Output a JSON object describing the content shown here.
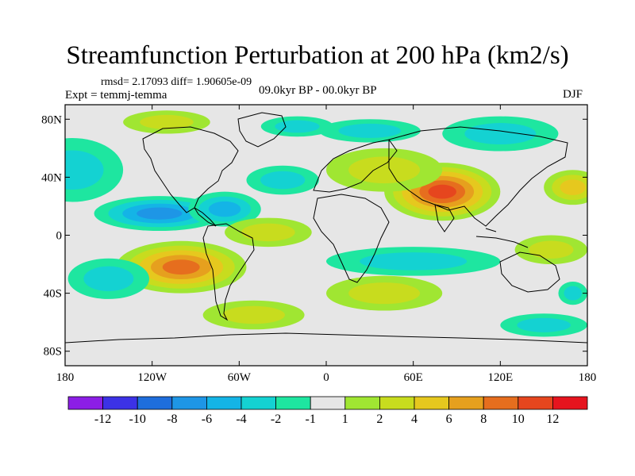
{
  "header": {
    "title": "Streamfunction Perturbation at 200 hPa (km2/s)",
    "stats": "rmsd= 2.17093 diff= 1.90605e-09",
    "experiment": "Expt = temmj-temma",
    "period": "09.0kyr BP - 00.0kyr BP",
    "season": "DJF"
  },
  "map": {
    "projection": "cylindrical-equidistant",
    "lat_labels": [
      "80N",
      "40N",
      "0",
      "40S",
      "80S"
    ],
    "lon_labels": [
      "180",
      "120W",
      "60W",
      "0",
      "60E",
      "120E",
      "180"
    ],
    "lat_values": [
      80,
      40,
      0,
      -40,
      -80
    ],
    "lon_values": [
      -180,
      -120,
      -60,
      0,
      60,
      120,
      180
    ],
    "lat_range": [
      -90,
      90
    ],
    "lon_range": [
      -180,
      180
    ],
    "background_color": "#e6e6e6"
  },
  "colorbar": {
    "labels": [
      "-12",
      "-10",
      "-8",
      "-6",
      "-4",
      "-2",
      "-1",
      "1",
      "2",
      "4",
      "6",
      "8",
      "10",
      "12"
    ],
    "colors": [
      "#8c1ee6",
      "#3c32e6",
      "#1e6edc",
      "#1e96e6",
      "#14b4e6",
      "#14d2d2",
      "#1ee6a0",
      "#e6e6e6",
      "#a0e632",
      "#c8dc1e",
      "#e6c81e",
      "#e6a01e",
      "#e66e1e",
      "#e6461e",
      "#e6141e"
    ]
  },
  "chart_data": {
    "type": "heatmap",
    "title": "Streamfunction Perturbation at 200 hPa (km2/s)",
    "field_approximation": [
      {
        "lon": -110,
        "lat": 78,
        "value": 3,
        "rlon": 30,
        "rlat": 8
      },
      {
        "lon": -175,
        "lat": 45,
        "value": -3,
        "rlon": 35,
        "rlat": 22
      },
      {
        "lon": -115,
        "lat": 15,
        "value": -6,
        "rlon": 45,
        "rlat": 12
      },
      {
        "lon": -70,
        "lat": 18,
        "value": -4,
        "rlon": 25,
        "rlat": 12
      },
      {
        "lon": -30,
        "lat": 38,
        "value": -3,
        "rlon": 25,
        "rlat": 10
      },
      {
        "lon": -20,
        "lat": 75,
        "value": -2,
        "rlon": 25,
        "rlat": 7
      },
      {
        "lon": 30,
        "lat": 72,
        "value": -2,
        "rlon": 35,
        "rlat": 8
      },
      {
        "lon": 120,
        "lat": 70,
        "value": -2,
        "rlon": 40,
        "rlat": 12
      },
      {
        "lon": 80,
        "lat": 30,
        "value": 10,
        "rlon": 40,
        "rlat": 20
      },
      {
        "lon": 40,
        "lat": 45,
        "value": 3,
        "rlon": 40,
        "rlat": 15
      },
      {
        "lon": 170,
        "lat": 33,
        "value": 4,
        "rlon": 20,
        "rlat": 12
      },
      {
        "lon": -100,
        "lat": -22,
        "value": 9,
        "rlon": 45,
        "rlat": 18
      },
      {
        "lon": -40,
        "lat": 2,
        "value": 2,
        "rlon": 30,
        "rlat": 10
      },
      {
        "lon": -150,
        "lat": -30,
        "value": -3,
        "rlon": 28,
        "rlat": 14
      },
      {
        "lon": 60,
        "lat": -18,
        "value": -3,
        "rlon": 60,
        "rlat": 10
      },
      {
        "lon": 40,
        "lat": -40,
        "value": 2,
        "rlon": 40,
        "rlat": 12
      },
      {
        "lon": -50,
        "lat": -55,
        "value": 3,
        "rlon": 35,
        "rlat": 10
      },
      {
        "lon": 150,
        "lat": -62,
        "value": -3,
        "rlon": 30,
        "rlat": 8
      },
      {
        "lon": 170,
        "lat": -40,
        "value": -2,
        "rlon": 10,
        "rlat": 8
      },
      {
        "lon": 155,
        "lat": -10,
        "value": 3,
        "rlon": 25,
        "rlat": 10
      }
    ]
  }
}
